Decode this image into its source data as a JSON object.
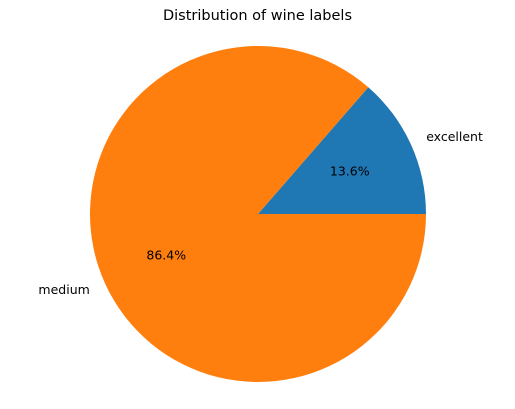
{
  "chart_data": {
    "type": "pie",
    "title": "Distribution of wine labels",
    "start_angle_deg": 0,
    "counterclockwise": true,
    "slices": [
      {
        "label": "excellent",
        "value": 13.6,
        "pct_label": "13.6%",
        "color": "#1f77b4"
      },
      {
        "label": "medium",
        "value": 86.4,
        "pct_label": "86.4%",
        "color": "#ff7f0e"
      }
    ]
  }
}
